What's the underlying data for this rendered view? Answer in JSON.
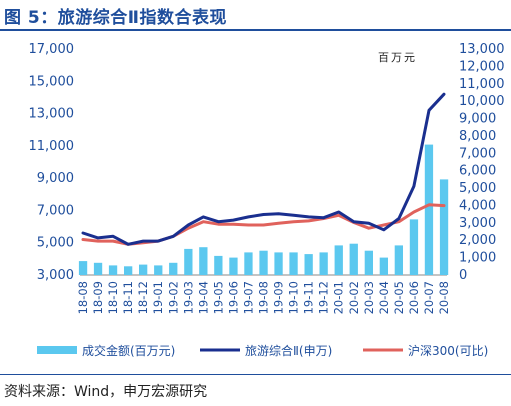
{
  "header": {
    "title": "图 5：旅游综合Ⅱ指数合表现"
  },
  "footer": {
    "source": "资料来源：Wind，申万宏源研究"
  },
  "colors": {
    "volume": "#5bc8ef",
    "index": "#1a2f8f",
    "hs300": "#e0625c",
    "text": "#1f4e9c"
  },
  "chart_data": {
    "type": "bar+line",
    "title": "",
    "annotation": "百万元",
    "left_axis": {
      "ticks": [
        "3,000",
        "5,000",
        "7,000",
        "9,000",
        "11,000",
        "13,000",
        "15,000",
        "17,000"
      ],
      "range": [
        3000,
        17000
      ]
    },
    "right_axis": {
      "ticks": [
        "0",
        "1,000",
        "2,000",
        "3,000",
        "4,000",
        "5,000",
        "6,000",
        "7,000",
        "8,000",
        "9,000",
        "10,000",
        "11,000",
        "12,000",
        "13,000"
      ],
      "range": [
        0,
        13000
      ]
    },
    "categories": [
      "18-08",
      "18-09",
      "18-10",
      "18-11",
      "18-12",
      "19-01",
      "19-02",
      "19-03",
      "19-04",
      "19-05",
      "19-06",
      "19-07",
      "19-08",
      "19-09",
      "19-10",
      "19-11",
      "19-12",
      "20-01",
      "20-02",
      "20-03",
      "20-04",
      "20-05",
      "20-06",
      "20-07",
      "20-08"
    ],
    "legend": [
      "成交金额(百万元)",
      "旅游综合Ⅱ(申万)",
      "沪深300(可比)"
    ],
    "series": [
      {
        "name": "成交金额(百万元)",
        "axis": "right",
        "type": "bar",
        "values": [
          800,
          700,
          550,
          500,
          600,
          550,
          700,
          1500,
          1600,
          1100,
          1000,
          1300,
          1400,
          1300,
          1300,
          1200,
          1300,
          1700,
          1800,
          1400,
          1000,
          1700,
          3200,
          7500,
          5500
        ]
      },
      {
        "name": "旅游综合Ⅱ(申万)",
        "axis": "left",
        "type": "line",
        "values": [
          5600,
          5300,
          5400,
          4900,
          5100,
          5100,
          5400,
          6100,
          6600,
          6300,
          6400,
          6600,
          6750,
          6800,
          6700,
          6600,
          6550,
          6900,
          6300,
          6200,
          5800,
          6500,
          8500,
          13200,
          14200
        ]
      },
      {
        "name": "沪深300(可比)",
        "axis": "left",
        "type": "line",
        "values": [
          5200,
          5100,
          5100,
          4900,
          5000,
          5100,
          5400,
          5900,
          6300,
          6150,
          6150,
          6100,
          6100,
          6200,
          6300,
          6350,
          6500,
          6700,
          6250,
          5900,
          6100,
          6300,
          6900,
          7350,
          7300
        ]
      }
    ]
  }
}
